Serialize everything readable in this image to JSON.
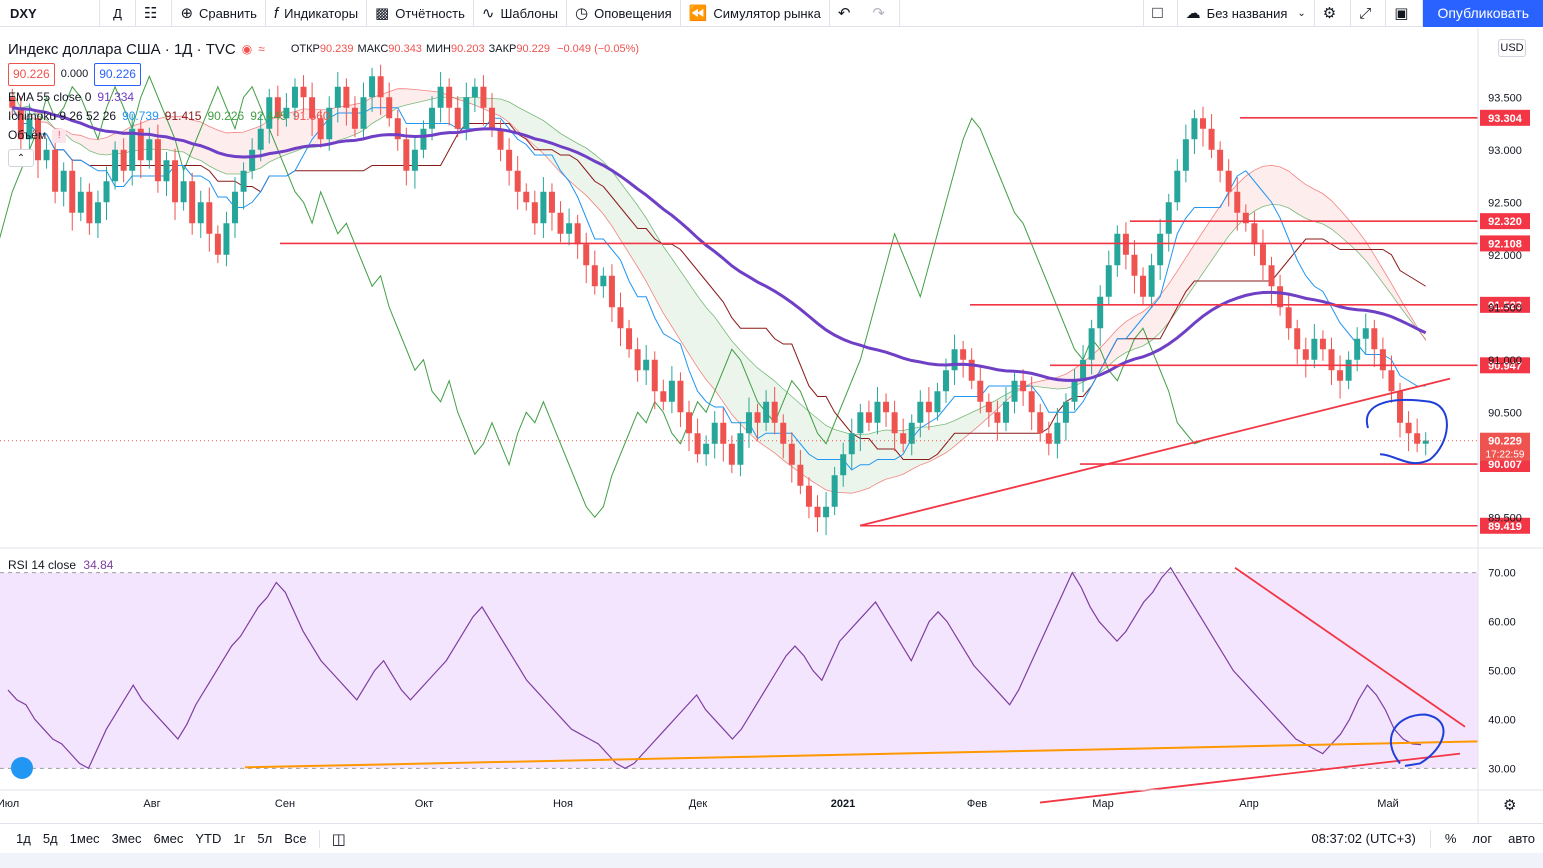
{
  "toolbar": {
    "symbol": "DXY",
    "interval": "Д",
    "compare": "Сравнить",
    "indicators": "Индикаторы",
    "reports": "Отчётность",
    "templates": "Шаблоны",
    "alerts": "Оповещения",
    "simulator": "Симулятор рынка",
    "layout_name": "Без названия",
    "publish": "Опубликовать"
  },
  "legend": {
    "title": "Индекс доллара США · 1Д · TVC",
    "ohlc": [
      {
        "label": "ОТКР",
        "value": "90.239"
      },
      {
        "label": "МАКС",
        "value": "90.343"
      },
      {
        "label": "МИН",
        "value": "90.203"
      },
      {
        "label": "ЗАКР",
        "value": "90.229"
      }
    ],
    "change": "−0.049 (−0.05%)",
    "bid": "90.226",
    "spread": "0.000",
    "ask": "90.226",
    "ema_label": "EMA 55 close 0",
    "ema_value": "91.334",
    "ichimoku_label": "Ichimoku 9 26 52 26",
    "ichimoku_values": [
      "90.739",
      "91.415",
      "90.226",
      "92.445",
      "91.560"
    ],
    "volume_label": "Объём",
    "volume_flag": "!"
  },
  "rsi_legend": {
    "label": "RSI 14 close",
    "value": "34.84"
  },
  "currency": "USD",
  "chart_data": [
    {
      "type": "candlestick",
      "title": "Индекс доллара США · 1Д · TVC",
      "symbol": "DXY",
      "x_ticks": [
        "Июл",
        "Авг",
        "Сен",
        "Окт",
        "Ноя",
        "Дек",
        "2021",
        "Фев",
        "Мар",
        "Апр",
        "Май"
      ],
      "y_ticks": [
        "93.500",
        "93.000",
        "92.500",
        "92.000",
        "91.500",
        "91.000",
        "90.500",
        "89.500"
      ],
      "ylim": [
        89.35,
        93.95
      ],
      "last_price": "90.229",
      "countdown": "17:22:59",
      "price_levels": [
        {
          "label": "93.304",
          "value": 93.304
        },
        {
          "label": "92.320",
          "value": 92.32
        },
        {
          "label": "92.108",
          "value": 92.108
        },
        {
          "label": "91.523",
          "value": 91.523
        },
        {
          "label": "90.947",
          "value": 90.947
        },
        {
          "label": "90.007",
          "value": 90.007
        },
        {
          "label": "89.419",
          "value": 89.419
        }
      ],
      "closes": [
        93.4,
        93.1,
        93.3,
        92.9,
        93.0,
        92.6,
        92.8,
        92.4,
        92.6,
        92.3,
        92.5,
        92.7,
        93.0,
        92.8,
        93.2,
        92.9,
        93.1,
        92.7,
        92.9,
        92.5,
        92.7,
        92.3,
        92.5,
        92.2,
        92.0,
        92.3,
        92.6,
        92.8,
        93.0,
        93.2,
        93.5,
        93.3,
        93.4,
        93.6,
        93.5,
        93.3,
        93.1,
        93.4,
        93.6,
        93.4,
        93.2,
        93.5,
        93.7,
        93.5,
        93.3,
        93.1,
        92.8,
        93.0,
        93.2,
        93.4,
        93.6,
        93.4,
        93.2,
        93.5,
        93.6,
        93.4,
        93.2,
        93.0,
        92.8,
        92.6,
        92.5,
        92.3,
        92.6,
        92.4,
        92.2,
        92.3,
        92.1,
        91.9,
        91.7,
        91.8,
        91.5,
        91.3,
        91.1,
        90.9,
        91.0,
        90.7,
        90.6,
        90.8,
        90.5,
        90.3,
        90.1,
        90.2,
        90.4,
        90.2,
        90.0,
        90.3,
        90.5,
        90.4,
        90.6,
        90.4,
        90.2,
        90.0,
        89.8,
        89.6,
        89.5,
        89.6,
        89.9,
        90.1,
        90.3,
        90.5,
        90.4,
        90.6,
        90.5,
        90.3,
        90.2,
        90.4,
        90.6,
        90.5,
        90.7,
        90.9,
        91.1,
        91.0,
        90.8,
        90.6,
        90.5,
        90.4,
        90.6,
        90.8,
        90.7,
        90.5,
        90.3,
        90.2,
        90.4,
        90.6,
        90.8,
        91.0,
        91.3,
        91.6,
        91.9,
        92.2,
        92.0,
        91.8,
        91.6,
        91.9,
        92.2,
        92.5,
        92.8,
        93.1,
        93.3,
        93.2,
        93.0,
        92.8,
        92.6,
        92.4,
        92.3,
        92.1,
        91.9,
        91.7,
        91.5,
        91.3,
        91.1,
        91.0,
        91.2,
        91.1,
        90.9,
        90.8,
        91.0,
        91.2,
        91.3,
        91.1,
        90.9,
        90.7,
        90.4,
        90.3,
        90.2,
        90.23
      ],
      "ema_label": "EMA 55",
      "indicator": "Ichimoku 9 26 52 26"
    },
    {
      "type": "line",
      "title": "RSI 14 close",
      "y_ticks": [
        "70.00",
        "60.00",
        "50.00",
        "40.00",
        "30.00"
      ],
      "ylim": [
        27,
        73
      ],
      "band": [
        30,
        70
      ],
      "last_value": 34.84,
      "values": [
        46,
        44,
        43,
        40,
        38,
        36,
        35,
        33,
        31,
        30,
        34,
        38,
        41,
        44,
        47,
        44,
        42,
        40,
        38,
        36,
        39,
        43,
        46,
        49,
        52,
        55,
        57,
        60,
        63,
        65,
        68,
        66,
        62,
        58,
        55,
        52,
        50,
        48,
        46,
        44,
        47,
        50,
        52,
        49,
        46,
        44,
        46,
        48,
        50,
        52,
        55,
        58,
        61,
        63,
        60,
        57,
        54,
        51,
        48,
        46,
        44,
        42,
        40,
        38,
        37,
        36,
        35,
        33,
        31,
        30,
        31,
        33,
        35,
        37,
        39,
        41,
        43,
        45,
        42,
        40,
        38,
        36,
        38,
        41,
        44,
        47,
        50,
        53,
        55,
        53,
        50,
        48,
        52,
        56,
        58,
        60,
        62,
        64,
        61,
        58,
        55,
        52,
        56,
        60,
        62,
        60,
        57,
        54,
        51,
        49,
        47,
        45,
        43,
        46,
        50,
        54,
        58,
        62,
        66,
        70,
        67,
        63,
        60,
        58,
        56,
        58,
        61,
        64,
        66,
        69,
        71,
        68,
        65,
        62,
        59,
        56,
        53,
        50,
        48,
        46,
        44,
        42,
        40,
        38,
        36,
        35,
        34,
        33,
        35,
        37,
        40,
        44,
        47,
        45,
        42,
        38,
        36,
        35,
        34.84
      ],
      "trend_lines": [
        "resistance",
        "support"
      ]
    }
  ],
  "bottombar": {
    "ranges": [
      "1д",
      "5д",
      "1мес",
      "3мес",
      "6мес",
      "YTD",
      "1г",
      "5л",
      "Все"
    ],
    "time": "08:37:02 (UTC+3)",
    "percent": "%",
    "log": "лог",
    "auto": "авто"
  },
  "colors": {
    "up": "#26a69a",
    "down": "#ef5350",
    "ema": "#6f3fc5",
    "tenkan": "#2196f3",
    "kijun": "#8b1a1a",
    "chikou": "#43a047",
    "level": "#f23645",
    "rsi": "#7e3fa0",
    "rsi_band": "#f3e5fd",
    "support": "#ff9800",
    "annotation": "#1e3fd8"
  }
}
